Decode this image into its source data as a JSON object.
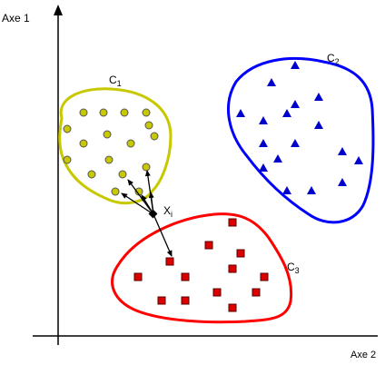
{
  "axes": {
    "y_label": "Axe 1",
    "x_label": "Axe 2"
  },
  "point_label": {
    "main": "X",
    "sub": "i"
  },
  "clusters": [
    {
      "name": "C",
      "sub": "1",
      "color": "#c8c800",
      "marker": "circle",
      "marker_fill": "#c8c800"
    },
    {
      "name": "C",
      "sub": "2",
      "color": "#0000ff",
      "marker": "triangle",
      "marker_fill": "#0000cc"
    },
    {
      "name": "C",
      "sub": "3",
      "color": "#ff0000",
      "marker": "square",
      "marker_fill": "#dd0000"
    }
  ],
  "colors": {
    "axis": "#000000",
    "arrow": "#000000",
    "point": "#000000"
  }
}
